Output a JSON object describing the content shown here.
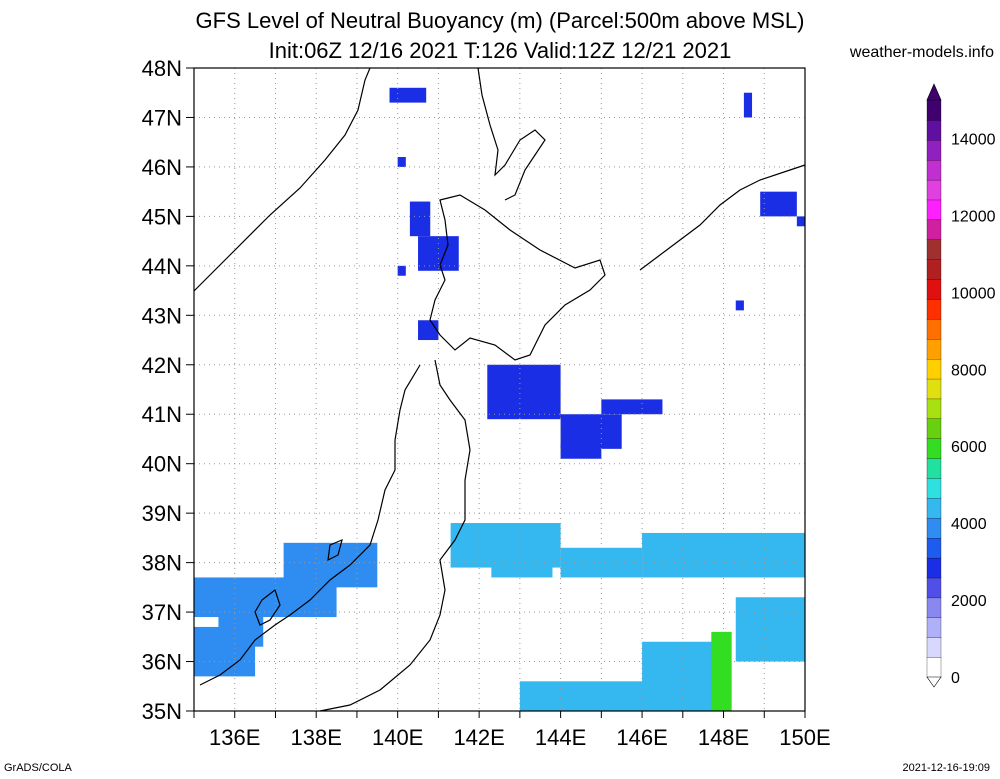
{
  "title_line1": "GFS Level of Neutral Buoyancy (m) (Parcel:500m above MSL)",
  "title_line2": "Init:06Z 12/16 2021 T:126 Valid:12Z 12/21 2021",
  "credit": "weather-models.info",
  "footer_left": "GrADS/COLA",
  "footer_right": "2021-12-16-19:09",
  "map": {
    "lat_range": [
      35,
      48
    ],
    "lon_range": [
      135,
      150
    ],
    "lat_labels": [
      "35N",
      "36N",
      "37N",
      "38N",
      "39N",
      "40N",
      "41N",
      "42N",
      "43N",
      "44N",
      "45N",
      "46N",
      "47N",
      "48N"
    ],
    "lon_labels": [
      "136E",
      "138E",
      "140E",
      "142E",
      "144E",
      "146E",
      "148E",
      "150E"
    ],
    "lon_label_values": [
      136,
      138,
      140,
      142,
      144,
      146,
      148,
      150
    ],
    "colors": {
      "blue": "#1a2ee6",
      "mid": "#2f8cf0",
      "light": "#35b7f0",
      "cyan": "#2fe0e0",
      "green": "#33dd22",
      "coast": "#000000",
      "grid": "#999999"
    },
    "fields": [
      {
        "id": "nw-blob",
        "lat_lon_cells": [
          [
            47.3,
            139.8,
            47.6,
            140.7
          ],
          [
            46.0,
            140.0,
            46.2,
            140.2
          ],
          [
            44.6,
            140.3,
            45.3,
            140.8
          ],
          [
            43.9,
            140.5,
            44.6,
            141.5
          ],
          [
            43.8,
            140.0,
            44.0,
            140.2
          ],
          [
            42.5,
            140.5,
            42.9,
            141.0
          ]
        ],
        "level": "blue"
      },
      {
        "id": "tsugaru-east",
        "lat_lon_cells": [
          [
            40.9,
            142.2,
            42.0,
            144.0
          ],
          [
            40.3,
            144.0,
            41.0,
            145.5
          ],
          [
            40.1,
            144.0,
            40.4,
            145.0
          ],
          [
            41.0,
            145.0,
            41.3,
            146.5
          ]
        ],
        "level": "blue"
      },
      {
        "id": "kuril-east",
        "lat_lon_cells": [
          [
            45.0,
            148.9,
            45.5,
            149.8
          ],
          [
            44.8,
            149.8,
            45.0,
            150.0
          ],
          [
            47.0,
            148.5,
            47.5,
            148.7
          ],
          [
            43.1,
            148.3,
            43.3,
            148.5
          ]
        ],
        "level": "blue"
      },
      {
        "id": "honshu-west",
        "lat_lon_cells": [
          [
            36.9,
            135.0,
            37.7,
            138.5
          ],
          [
            37.5,
            137.2,
            38.4,
            139.5
          ],
          [
            35.7,
            135.0,
            36.7,
            136.5
          ],
          [
            36.3,
            135.6,
            36.9,
            136.7
          ]
        ],
        "level": "mid"
      },
      {
        "id": "pacific-band",
        "lat_lon_cells": [
          [
            37.9,
            141.3,
            38.8,
            144.0
          ],
          [
            37.7,
            142.3,
            38.5,
            143.8
          ],
          [
            37.7,
            144.0,
            38.3,
            146.0
          ],
          [
            37.7,
            146.0,
            38.6,
            150.0
          ],
          [
            36.0,
            148.3,
            37.3,
            150.0
          ],
          [
            35.0,
            143.0,
            35.6,
            148.0
          ],
          [
            35.3,
            146.0,
            36.4,
            148.0
          ]
        ],
        "level": "light"
      },
      {
        "id": "green-core",
        "lat_lon_cells": [
          [
            35.0,
            147.7,
            36.6,
            148.2
          ]
        ],
        "level": "green"
      }
    ]
  },
  "colorbar": {
    "tick_labels": [
      "0",
      "2000",
      "4000",
      "6000",
      "8000",
      "10000",
      "12000",
      "14000"
    ],
    "tick_values": [
      0,
      2000,
      4000,
      6000,
      8000,
      10000,
      12000,
      14000
    ],
    "max": 15000,
    "colors": [
      "#ffffff",
      "#d8d8ff",
      "#b0b0f8",
      "#8888f0",
      "#5050e8",
      "#1a2ee6",
      "#1e5cf0",
      "#2f8cf0",
      "#35b7f0",
      "#2fe0e0",
      "#22e0a0",
      "#33dd22",
      "#66d011",
      "#a8e011",
      "#e0e011",
      "#ffd000",
      "#ffa000",
      "#ff7000",
      "#ff3000",
      "#e01010",
      "#b02020",
      "#a03030",
      "#d020a0",
      "#ff20ff",
      "#e040e0",
      "#c030d0",
      "#9020c0",
      "#6010a0",
      "#400070"
    ]
  }
}
